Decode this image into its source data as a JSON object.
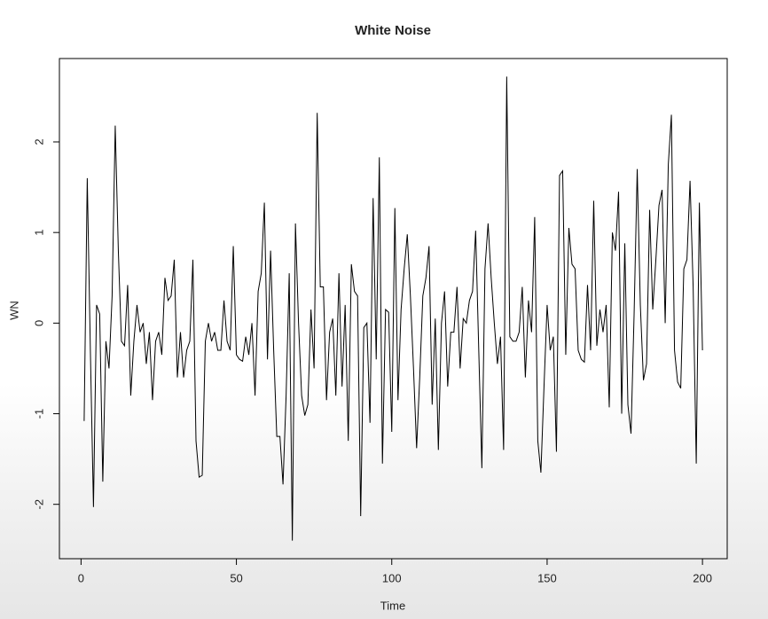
{
  "chart_data": {
    "type": "line",
    "title": "White Noise",
    "x_label": "Time",
    "y_label": "WN",
    "color": "#000000",
    "x": [
      1,
      2,
      3,
      4,
      5,
      6,
      7,
      8,
      9,
      10,
      11,
      12,
      13,
      14,
      15,
      16,
      17,
      18,
      19,
      20,
      21,
      22,
      23,
      24,
      25,
      26,
      27,
      28,
      29,
      30,
      31,
      32,
      33,
      34,
      35,
      36,
      37,
      38,
      39,
      40,
      41,
      42,
      43,
      44,
      45,
      46,
      47,
      48,
      49,
      50,
      51,
      52,
      53,
      54,
      55,
      56,
      57,
      58,
      59,
      60,
      61,
      62,
      63,
      64,
      65,
      66,
      67,
      68,
      69,
      70,
      71,
      72,
      73,
      74,
      75,
      76,
      77,
      78,
      79,
      80,
      81,
      82,
      83,
      84,
      85,
      86,
      87,
      88,
      89,
      90,
      91,
      92,
      93,
      94,
      95,
      96,
      97,
      98,
      99,
      100,
      101,
      102,
      103,
      104,
      105,
      106,
      107,
      108,
      109,
      110,
      111,
      112,
      113,
      114,
      115,
      116,
      117,
      118,
      119,
      120,
      121,
      122,
      123,
      124,
      125,
      126,
      127,
      128,
      129,
      130,
      131,
      132,
      133,
      134,
      135,
      136,
      137,
      138,
      139,
      140,
      141,
      142,
      143,
      144,
      145,
      146,
      147,
      148,
      149,
      150,
      151,
      152,
      153,
      154,
      155,
      156,
      157,
      158,
      159,
      160,
      161,
      162,
      163,
      164,
      165,
      166,
      167,
      168,
      169,
      170,
      171,
      172,
      173,
      174,
      175,
      176,
      177,
      178,
      179,
      180,
      181,
      182,
      183,
      184,
      185,
      186,
      187,
      188,
      189,
      190,
      191,
      192,
      193,
      194,
      195,
      196,
      197,
      198,
      199,
      200
    ],
    "values": [
      -1.08,
      1.6,
      -0.3,
      -2.03,
      0.2,
      0.1,
      -1.75,
      -0.2,
      -0.5,
      0.3,
      2.18,
      0.8,
      -0.2,
      -0.25,
      0.42,
      -0.8,
      -0.2,
      0.2,
      -0.1,
      0.0,
      -0.45,
      -0.1,
      -0.85,
      -0.2,
      -0.1,
      -0.35,
      0.5,
      0.25,
      0.3,
      0.7,
      -0.6,
      -0.1,
      -0.6,
      -0.3,
      -0.2,
      0.7,
      -1.3,
      -1.7,
      -1.68,
      -0.2,
      0.0,
      -0.2,
      -0.1,
      -0.3,
      -0.3,
      0.25,
      -0.2,
      -0.3,
      0.85,
      -0.35,
      -0.4,
      -0.42,
      -0.15,
      -0.35,
      0.0,
      -0.8,
      0.35,
      0.55,
      1.33,
      -0.4,
      0.8,
      -0.3,
      -1.25,
      -1.25,
      -1.78,
      -0.8,
      0.55,
      -2.4,
      1.1,
      0.0,
      -0.8,
      -1.02,
      -0.9,
      0.15,
      -0.5,
      2.32,
      0.4,
      0.4,
      -0.85,
      -0.1,
      0.05,
      -0.8,
      0.55,
      -0.7,
      0.2,
      -1.3,
      0.65,
      0.35,
      0.3,
      -2.13,
      -0.05,
      0.0,
      -1.1,
      1.38,
      -0.4,
      1.83,
      -1.55,
      0.15,
      0.12,
      -1.2,
      1.27,
      -0.85,
      0.15,
      0.6,
      0.98,
      0.3,
      -0.5,
      -1.38,
      -0.6,
      0.3,
      0.5,
      0.85,
      -0.9,
      0.05,
      -1.4,
      0.0,
      0.35,
      -0.7,
      -0.1,
      -0.1,
      0.4,
      -0.5,
      0.05,
      0.0,
      0.25,
      0.35,
      1.02,
      -0.3,
      -1.6,
      0.6,
      1.1,
      0.5,
      0.0,
      -0.45,
      -0.15,
      -1.4,
      2.72,
      -0.15,
      -0.2,
      -0.2,
      -0.1,
      0.4,
      -0.6,
      0.25,
      -0.1,
      1.17,
      -1.3,
      -1.65,
      -0.7,
      0.2,
      -0.3,
      -0.15,
      -1.42,
      1.63,
      1.68,
      -0.35,
      1.05,
      0.65,
      0.6,
      -0.3,
      -0.4,
      -0.43,
      0.42,
      -0.3,
      1.35,
      -0.25,
      0.15,
      -0.1,
      0.2,
      -0.93,
      1.0,
      0.8,
      1.45,
      -1.0,
      0.88,
      -0.9,
      -1.22,
      0.1,
      1.7,
      0.2,
      -0.63,
      -0.45,
      1.25,
      0.15,
      0.7,
      1.3,
      1.47,
      0.0,
      1.75,
      2.3,
      -0.3,
      -0.65,
      -0.72,
      0.6,
      0.7,
      1.57,
      0.4,
      -1.55,
      1.33,
      -0.3
    ],
    "xlim": [
      -6.96,
      207.96
    ],
    "ylim": [
      -2.6,
      2.92
    ],
    "xticks": [
      0,
      50,
      100,
      150,
      200
    ],
    "yticks": [
      -2,
      -1,
      0,
      1,
      2
    ]
  }
}
